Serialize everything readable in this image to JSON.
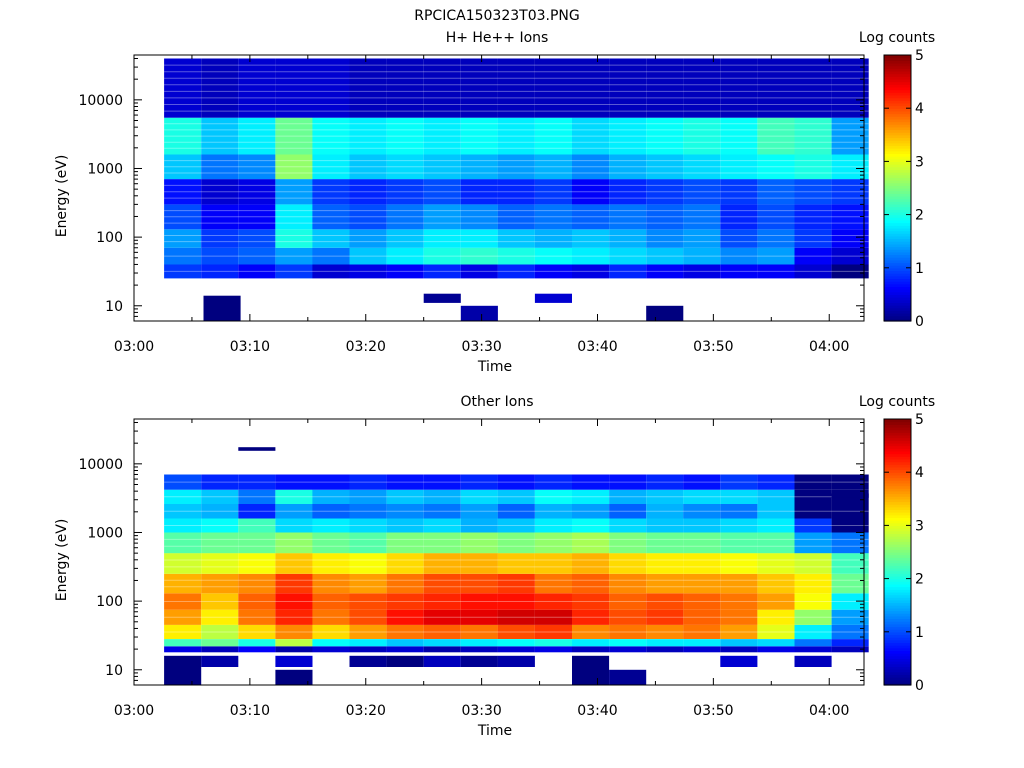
{
  "figure": {
    "title": "RPCICA150323T03.PNG"
  },
  "colormap": [
    "#00007f",
    "#0000ff",
    "#007fff",
    "#00ffff",
    "#7fff7f",
    "#ffff00",
    "#ff7f00",
    "#ff0000",
    "#7f0000"
  ],
  "chart_data": [
    {
      "type": "heatmap",
      "title": "H+ He++ Ions",
      "xlabel": "Time",
      "ylabel": "Energy (eV)",
      "x_ticks": [
        "03:00",
        "03:10",
        "03:20",
        "03:30",
        "03:40",
        "03:50",
        "04:00"
      ],
      "xlim_minutes": [
        0,
        63
      ],
      "yscale": "log",
      "ylim": [
        6,
        45000
      ],
      "y_ticks": [
        10,
        100,
        1000,
        10000
      ],
      "y_tick_labels": [
        "10",
        "100",
        "1000",
        "10000"
      ],
      "colorbar": {
        "label": "Log counts",
        "range": [
          0,
          5
        ],
        "ticks": [
          "0",
          "1",
          "2",
          "3",
          "4",
          "5"
        ]
      },
      "time_bins_minutes": [
        2.6,
        5.8,
        9.0,
        12.2,
        15.4,
        18.6,
        21.8,
        25.0,
        28.2,
        31.4,
        34.6,
        37.8,
        41.0,
        44.2,
        47.4,
        50.6,
        53.8,
        57.0,
        60.2
      ],
      "energy_bands_eV": [
        [
          25,
          40
        ],
        [
          40,
          70
        ],
        [
          70,
          130
        ],
        [
          130,
          300
        ],
        [
          300,
          700
        ],
        [
          700,
          1600
        ],
        [
          1600,
          5500
        ],
        [
          5500,
          40000
        ]
      ],
      "log_counts": [
        [
          0.9,
          0.8,
          0.6,
          0.9,
          0.4,
          0.5,
          0.6,
          0.8,
          0.5,
          0.8,
          0.6,
          0.5,
          0.8,
          0.6,
          0.5,
          0.6,
          0.6,
          0.4,
          0.0
        ],
        [
          1.2,
          1.0,
          1.1,
          1.4,
          1.2,
          1.6,
          1.8,
          2.0,
          2.1,
          2.0,
          1.9,
          1.8,
          1.7,
          1.6,
          1.5,
          1.3,
          1.4,
          0.6,
          0.4
        ],
        [
          1.4,
          0.9,
          1.0,
          2.0,
          1.6,
          1.4,
          1.6,
          1.8,
          1.8,
          1.6,
          1.5,
          1.6,
          1.5,
          1.3,
          1.4,
          1.0,
          1.2,
          0.9,
          0.6
        ],
        [
          1.0,
          0.6,
          0.6,
          1.8,
          1.1,
          1.0,
          1.2,
          1.4,
          1.3,
          1.1,
          1.2,
          1.1,
          1.2,
          1.1,
          1.2,
          0.8,
          1.0,
          0.8,
          0.7
        ],
        [
          0.7,
          0.4,
          0.5,
          1.4,
          0.9,
          0.8,
          0.9,
          1.0,
          0.8,
          0.8,
          0.9,
          0.6,
          0.8,
          0.9,
          1.0,
          0.9,
          1.1,
          1.0,
          0.9
        ],
        [
          1.6,
          1.2,
          1.3,
          2.6,
          1.8,
          1.6,
          1.7,
          1.6,
          1.5,
          1.4,
          1.5,
          1.3,
          1.5,
          1.6,
          1.7,
          1.8,
          1.9,
          2.0,
          1.8
        ],
        [
          2.0,
          1.6,
          1.8,
          2.4,
          1.9,
          1.8,
          1.9,
          1.8,
          1.9,
          1.8,
          1.9,
          1.7,
          1.8,
          1.9,
          2.0,
          1.9,
          2.2,
          2.1,
          1.4
        ],
        [
          0.4,
          0.3,
          0.4,
          0.4,
          0.4,
          0.3,
          0.3,
          0.3,
          0.3,
          0.3,
          0.3,
          0.3,
          0.3,
          0.3,
          0.3,
          0.3,
          0.3,
          0.3,
          0.3
        ]
      ],
      "sparse_blocks": [
        {
          "t_minutes": 6.0,
          "dt_minutes": 3.2,
          "energy_eV": [
            6,
            14
          ],
          "log_counts": 0.0
        },
        {
          "t_minutes": 25.0,
          "dt_minutes": 3.2,
          "energy_eV": [
            11,
            15
          ],
          "log_counts": 0.1
        },
        {
          "t_minutes": 28.2,
          "dt_minutes": 3.2,
          "energy_eV": [
            6,
            10
          ],
          "log_counts": 0.2
        },
        {
          "t_minutes": 34.6,
          "dt_minutes": 3.2,
          "energy_eV": [
            11,
            15
          ],
          "log_counts": 0.4
        },
        {
          "t_minutes": 44.2,
          "dt_minutes": 3.2,
          "energy_eV": [
            6,
            10
          ],
          "log_counts": 0.0
        }
      ]
    },
    {
      "type": "heatmap",
      "title": "Other Ions",
      "xlabel": "Time",
      "ylabel": "Energy (eV)",
      "x_ticks": [
        "03:00",
        "03:10",
        "03:20",
        "03:30",
        "03:40",
        "03:50",
        "04:00"
      ],
      "xlim_minutes": [
        0,
        63
      ],
      "yscale": "log",
      "ylim": [
        6,
        45000
      ],
      "y_ticks": [
        10,
        100,
        1000,
        10000
      ],
      "y_tick_labels": [
        "10",
        "100",
        "1000",
        "10000"
      ],
      "colorbar": {
        "label": "Log counts",
        "range": [
          0,
          5
        ],
        "ticks": [
          "0",
          "1",
          "2",
          "3",
          "4",
          "5"
        ]
      },
      "time_bins_minutes": [
        2.6,
        5.8,
        9.0,
        12.2,
        15.4,
        18.6,
        21.8,
        25.0,
        28.2,
        31.4,
        34.6,
        37.8,
        41.0,
        44.2,
        47.4,
        50.6,
        53.8,
        57.0,
        60.2
      ],
      "energy_bands_eV": [
        [
          18,
          22
        ],
        [
          22,
          28
        ],
        [
          28,
          45
        ],
        [
          45,
          75
        ],
        [
          75,
          130
        ],
        [
          130,
          250
        ],
        [
          250,
          500
        ],
        [
          500,
          1000
        ],
        [
          1000,
          1600
        ],
        [
          1600,
          2600
        ],
        [
          2600,
          4200
        ],
        [
          4200,
          7000
        ]
      ],
      "log_counts": [
        [
          0.5,
          0.3,
          0.6,
          0.2,
          0.4,
          0.3,
          0.4,
          0.2,
          0.3,
          0.4,
          0.5,
          0.3,
          0.4,
          0.3,
          0.4,
          0.3,
          0.5,
          0.4,
          0.3
        ],
        [
          2.2,
          2.4,
          2.0,
          2.8,
          1.9,
          1.8,
          1.6,
          1.7,
          1.8,
          1.9,
          2.0,
          1.8,
          1.9,
          1.8,
          1.8,
          1.6,
          1.7,
          1.2,
          0.8
        ],
        [
          3.2,
          2.8,
          3.3,
          3.7,
          3.3,
          3.6,
          3.8,
          3.9,
          3.8,
          4.0,
          4.1,
          3.7,
          3.8,
          3.7,
          3.8,
          3.6,
          3.0,
          1.8,
          1.2
        ],
        [
          3.6,
          3.2,
          3.8,
          4.2,
          3.8,
          4.0,
          4.3,
          4.5,
          4.5,
          4.6,
          4.6,
          4.2,
          4.0,
          4.1,
          3.9,
          3.8,
          3.2,
          2.6,
          1.4
        ],
        [
          3.8,
          3.4,
          3.9,
          4.3,
          3.9,
          4.0,
          4.1,
          4.2,
          4.3,
          4.3,
          4.2,
          4.1,
          3.9,
          4.0,
          3.9,
          3.8,
          3.6,
          3.1,
          1.8
        ],
        [
          3.5,
          3.6,
          3.7,
          4.1,
          3.7,
          3.6,
          3.8,
          4.0,
          4.0,
          4.1,
          3.8,
          3.9,
          3.7,
          3.6,
          3.6,
          3.6,
          3.4,
          3.2,
          2.4
        ],
        [
          2.9,
          3.0,
          3.1,
          3.4,
          3.2,
          3.1,
          3.3,
          3.5,
          3.5,
          3.4,
          3.4,
          3.5,
          3.3,
          3.2,
          3.2,
          3.1,
          3.0,
          2.9,
          2.2
        ],
        [
          2.3,
          2.4,
          2.4,
          2.6,
          2.4,
          2.3,
          2.5,
          2.5,
          2.6,
          2.5,
          2.6,
          2.7,
          2.5,
          2.4,
          2.4,
          2.3,
          2.3,
          1.4,
          1.2
        ],
        [
          1.8,
          1.9,
          2.2,
          1.7,
          1.8,
          1.7,
          1.6,
          1.7,
          1.5,
          1.6,
          1.8,
          1.9,
          1.7,
          1.6,
          1.6,
          1.7,
          1.8,
          0.9,
          0.0
        ],
        [
          1.6,
          1.5,
          0.8,
          1.4,
          1.1,
          1.2,
          1.3,
          1.2,
          1.4,
          1.1,
          1.5,
          1.4,
          1.1,
          1.5,
          1.3,
          1.2,
          1.6,
          0.0,
          0.0
        ],
        [
          1.8,
          1.6,
          1.2,
          2.0,
          1.5,
          1.4,
          1.6,
          1.5,
          1.7,
          1.6,
          1.9,
          1.8,
          1.5,
          1.6,
          1.7,
          1.7,
          1.6,
          0.0,
          0.0
        ],
        [
          1.0,
          0.8,
          0.8,
          0.7,
          0.7,
          0.8,
          0.7,
          0.7,
          0.8,
          0.7,
          0.8,
          0.7,
          0.7,
          0.8,
          0.7,
          0.9,
          0.8,
          0.0,
          0.0
        ]
      ],
      "sparse_blocks": [
        {
          "t_minutes": 2.6,
          "dt_minutes": 3.2,
          "energy_eV": [
            6,
            16
          ],
          "log_counts": 0.0
        },
        {
          "t_minutes": 5.8,
          "dt_minutes": 3.2,
          "energy_eV": [
            11,
            16
          ],
          "log_counts": 0.2
        },
        {
          "t_minutes": 12.2,
          "dt_minutes": 3.2,
          "energy_eV": [
            11,
            16
          ],
          "log_counts": 0.4
        },
        {
          "t_minutes": 12.2,
          "dt_minutes": 3.2,
          "energy_eV": [
            6,
            10
          ],
          "log_counts": 0.0
        },
        {
          "t_minutes": 18.6,
          "dt_minutes": 3.2,
          "energy_eV": [
            11,
            16
          ],
          "log_counts": 0.1
        },
        {
          "t_minutes": 21.8,
          "dt_minutes": 3.2,
          "energy_eV": [
            11,
            16
          ],
          "log_counts": 0.0
        },
        {
          "t_minutes": 25.0,
          "dt_minutes": 3.2,
          "energy_eV": [
            11,
            16
          ],
          "log_counts": 0.3
        },
        {
          "t_minutes": 28.2,
          "dt_minutes": 3.2,
          "energy_eV": [
            11,
            16
          ],
          "log_counts": 0.1
        },
        {
          "t_minutes": 31.4,
          "dt_minutes": 3.2,
          "energy_eV": [
            11,
            16
          ],
          "log_counts": 0.2
        },
        {
          "t_minutes": 37.8,
          "dt_minutes": 3.2,
          "energy_eV": [
            6,
            16
          ],
          "log_counts": 0.0
        },
        {
          "t_minutes": 41.0,
          "dt_minutes": 3.2,
          "energy_eV": [
            6,
            10
          ],
          "log_counts": 0.1
        },
        {
          "t_minutes": 50.6,
          "dt_minutes": 3.2,
          "energy_eV": [
            11,
            16
          ],
          "log_counts": 0.4
        },
        {
          "t_minutes": 57.0,
          "dt_minutes": 3.2,
          "energy_eV": [
            11,
            16
          ],
          "log_counts": 0.3
        },
        {
          "t_minutes": 9.0,
          "dt_minutes": 3.2,
          "energy_eV": [
            15500,
            17500
          ],
          "log_counts": 0.0
        },
        {
          "t_minutes": 60.2,
          "dt_minutes": 3.2,
          "energy_eV": [
            3200,
            3700
          ],
          "log_counts": 0.0
        }
      ]
    }
  ]
}
